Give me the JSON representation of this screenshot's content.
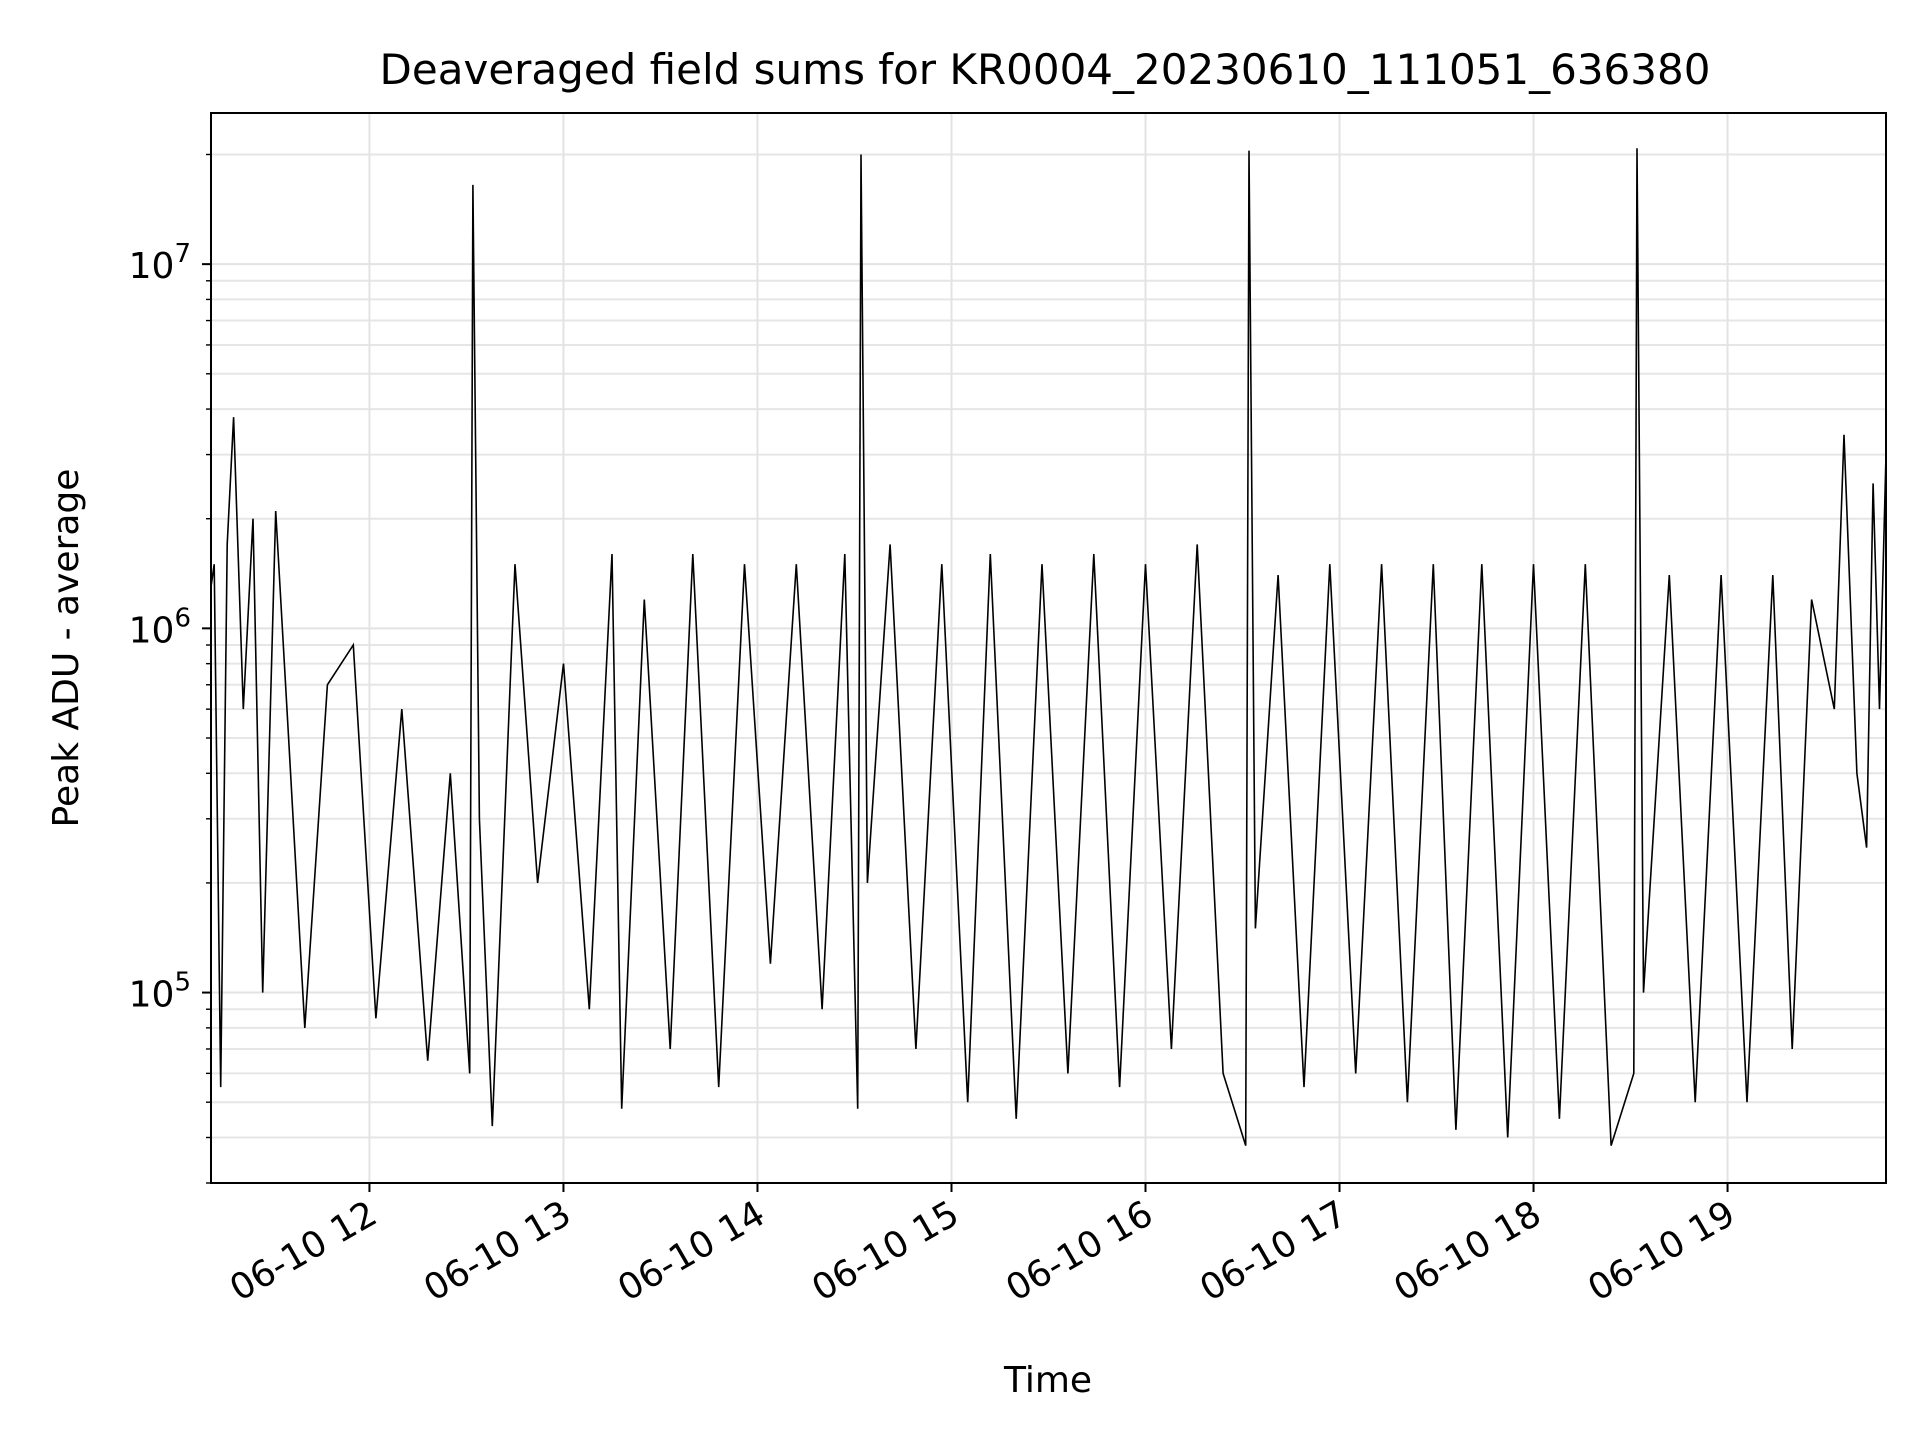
{
  "chart_data": {
    "type": "line",
    "title": "Deaveraged field sums for KR0004_20230610_111051_636380",
    "xlabel": "Time",
    "ylabel": "Peak ADU - average",
    "x_range": [
      "2023-06-10T11:11",
      "2023-06-10T19:49"
    ],
    "xticks": [
      {
        "label": "06-10 12",
        "time": "2023-06-10T12:00"
      },
      {
        "label": "06-10 13",
        "time": "2023-06-10T13:00"
      },
      {
        "label": "06-10 14",
        "time": "2023-06-10T14:00"
      },
      {
        "label": "06-10 15",
        "time": "2023-06-10T15:00"
      },
      {
        "label": "06-10 16",
        "time": "2023-06-10T16:00"
      },
      {
        "label": "06-10 17",
        "time": "2023-06-10T17:00"
      },
      {
        "label": "06-10 18",
        "time": "2023-06-10T18:00"
      },
      {
        "label": "06-10 19",
        "time": "2023-06-10T19:00"
      }
    ],
    "yscale": "log",
    "ylim": [
      30000,
      26000000
    ],
    "yticks": [
      {
        "base": "10",
        "exp": "5",
        "value": 100000
      },
      {
        "base": "10",
        "exp": "6",
        "value": 1000000
      },
      {
        "base": "10",
        "exp": "7",
        "value": 10000000
      }
    ],
    "grid": true,
    "line_color": "#000000",
    "series": [
      {
        "points": [
          [
            "2023-06-10T11:11",
            1300000
          ],
          [
            "2023-06-10T11:12",
            1500000
          ],
          [
            "2023-06-10T11:14",
            55000
          ],
          [
            "2023-06-10T11:16",
            1700000
          ],
          [
            "2023-06-10T11:18",
            3800000
          ],
          [
            "2023-06-10T11:21",
            600000
          ],
          [
            "2023-06-10T11:24",
            2000000
          ],
          [
            "2023-06-10T11:27",
            100000
          ],
          [
            "2023-06-10T11:31",
            2100000
          ],
          [
            "2023-06-10T11:35",
            500000
          ],
          [
            "2023-06-10T11:40",
            80000
          ],
          [
            "2023-06-10T11:47",
            700000
          ],
          [
            "2023-06-10T11:55",
            900000
          ],
          [
            "2023-06-10T12:02",
            85000
          ],
          [
            "2023-06-10T12:10",
            600000
          ],
          [
            "2023-06-10T12:18",
            65000
          ],
          [
            "2023-06-10T12:25",
            400000
          ],
          [
            "2023-06-10T12:31",
            60000
          ],
          [
            "2023-06-10T12:32",
            16500000
          ],
          [
            "2023-06-10T12:34",
            300000
          ],
          [
            "2023-06-10T12:38",
            43000
          ],
          [
            "2023-06-10T12:45",
            1500000
          ],
          [
            "2023-06-10T12:52",
            200000
          ],
          [
            "2023-06-10T13:00",
            800000
          ],
          [
            "2023-06-10T13:08",
            90000
          ],
          [
            "2023-06-10T13:15",
            1600000
          ],
          [
            "2023-06-10T13:18",
            48000
          ],
          [
            "2023-06-10T13:25",
            1200000
          ],
          [
            "2023-06-10T13:33",
            70000
          ],
          [
            "2023-06-10T13:40",
            1600000
          ],
          [
            "2023-06-10T13:48",
            55000
          ],
          [
            "2023-06-10T13:56",
            1500000
          ],
          [
            "2023-06-10T14:04",
            120000
          ],
          [
            "2023-06-10T14:12",
            1500000
          ],
          [
            "2023-06-10T14:20",
            90000
          ],
          [
            "2023-06-10T14:27",
            1600000
          ],
          [
            "2023-06-10T14:31",
            48000
          ],
          [
            "2023-06-10T14:32",
            20000000
          ],
          [
            "2023-06-10T14:34",
            200000
          ],
          [
            "2023-06-10T14:41",
            1700000
          ],
          [
            "2023-06-10T14:49",
            70000
          ],
          [
            "2023-06-10T14:57",
            1500000
          ],
          [
            "2023-06-10T15:05",
            50000
          ],
          [
            "2023-06-10T15:12",
            1600000
          ],
          [
            "2023-06-10T15:20",
            45000
          ],
          [
            "2023-06-10T15:28",
            1500000
          ],
          [
            "2023-06-10T15:36",
            60000
          ],
          [
            "2023-06-10T15:44",
            1600000
          ],
          [
            "2023-06-10T15:52",
            55000
          ],
          [
            "2023-06-10T16:00",
            1500000
          ],
          [
            "2023-06-10T16:08",
            70000
          ],
          [
            "2023-06-10T16:16",
            1700000
          ],
          [
            "2023-06-10T16:24",
            60000
          ],
          [
            "2023-06-10T16:31",
            38000
          ],
          [
            "2023-06-10T16:32",
            20500000
          ],
          [
            "2023-06-10T16:34",
            150000
          ],
          [
            "2023-06-10T16:41",
            1400000
          ],
          [
            "2023-06-10T16:49",
            55000
          ],
          [
            "2023-06-10T16:57",
            1500000
          ],
          [
            "2023-06-10T17:05",
            60000
          ],
          [
            "2023-06-10T17:13",
            1500000
          ],
          [
            "2023-06-10T17:21",
            50000
          ],
          [
            "2023-06-10T17:29",
            1500000
          ],
          [
            "2023-06-10T17:36",
            42000
          ],
          [
            "2023-06-10T17:44",
            1500000
          ],
          [
            "2023-06-10T17:52",
            40000
          ],
          [
            "2023-06-10T18:00",
            1500000
          ],
          [
            "2023-06-10T18:08",
            45000
          ],
          [
            "2023-06-10T18:16",
            1500000
          ],
          [
            "2023-06-10T18:24",
            38000
          ],
          [
            "2023-06-10T18:31",
            60000
          ],
          [
            "2023-06-10T18:32",
            20800000
          ],
          [
            "2023-06-10T18:34",
            100000
          ],
          [
            "2023-06-10T18:42",
            1400000
          ],
          [
            "2023-06-10T18:50",
            50000
          ],
          [
            "2023-06-10T18:58",
            1400000
          ],
          [
            "2023-06-10T19:06",
            50000
          ],
          [
            "2023-06-10T19:14",
            1400000
          ],
          [
            "2023-06-10T19:20",
            70000
          ],
          [
            "2023-06-10T19:26",
            1200000
          ],
          [
            "2023-06-10T19:33",
            600000
          ],
          [
            "2023-06-10T19:36",
            3400000
          ],
          [
            "2023-06-10T19:40",
            400000
          ],
          [
            "2023-06-10T19:43",
            250000
          ],
          [
            "2023-06-10T19:45",
            2500000
          ],
          [
            "2023-06-10T19:47",
            600000
          ],
          [
            "2023-06-10T19:49",
            3000000
          ]
        ]
      }
    ]
  }
}
